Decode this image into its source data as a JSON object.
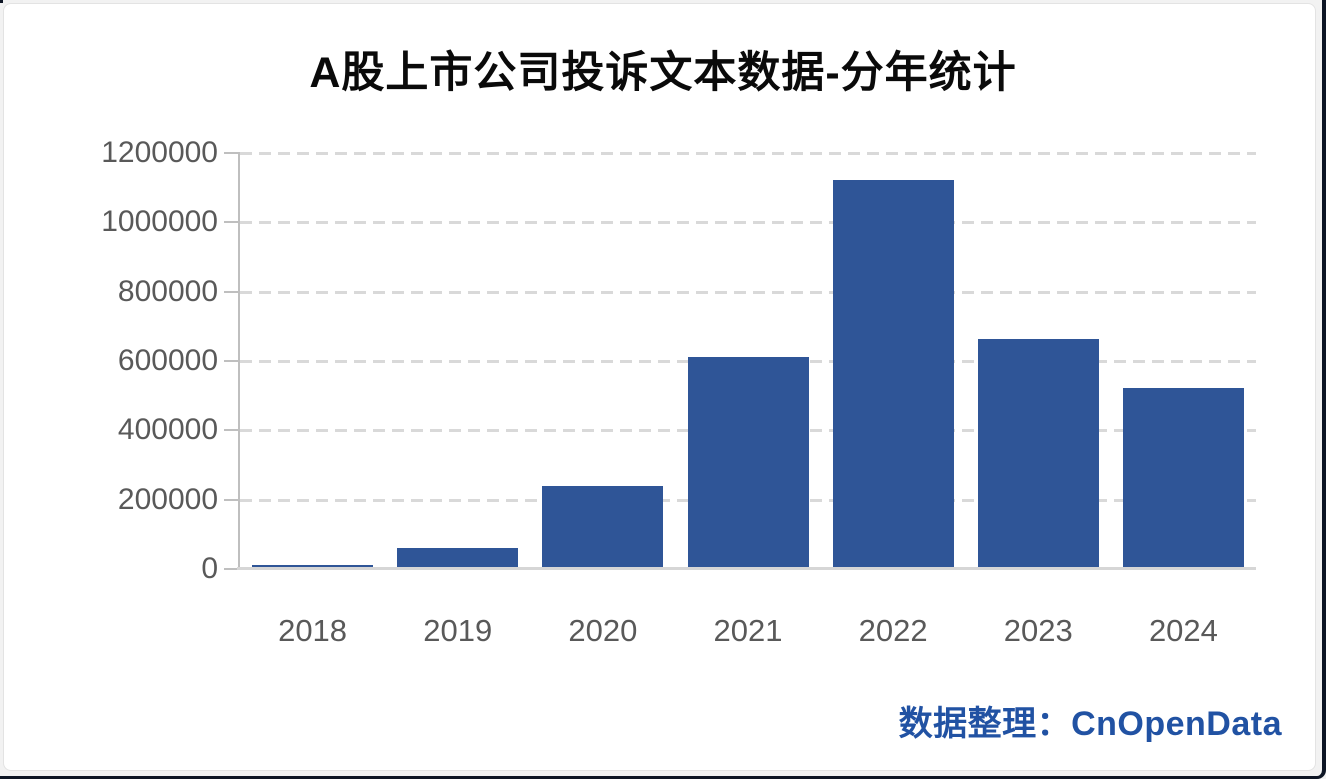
{
  "credit": {
    "text": "数据整理：CnOpenData"
  },
  "colors": {
    "bar": "#2f5597",
    "gridline": "#d9d9d9",
    "axis": "#bfbfbf",
    "tick_label": "#595959",
    "title": "#0a0a0a",
    "credit": "#2152a3"
  },
  "chart_data": {
    "type": "bar",
    "title": "A股上市公司投诉文本数据-分年统计",
    "categories": [
      "2018",
      "2019",
      "2020",
      "2021",
      "2022",
      "2023",
      "2024"
    ],
    "values": [
      10000,
      58000,
      237000,
      608000,
      1120000,
      660000,
      518000
    ],
    "xlabel": "",
    "ylabel": "",
    "ylim": [
      0,
      1200000
    ],
    "y_ticks": [
      "0",
      "200000",
      "400000",
      "600000",
      "800000",
      "1000000",
      "1200000"
    ],
    "y_tick_values": [
      0,
      200000,
      400000,
      600000,
      800000,
      1000000,
      1200000
    ],
    "grid": "dashed horizontal",
    "legend": "none"
  }
}
